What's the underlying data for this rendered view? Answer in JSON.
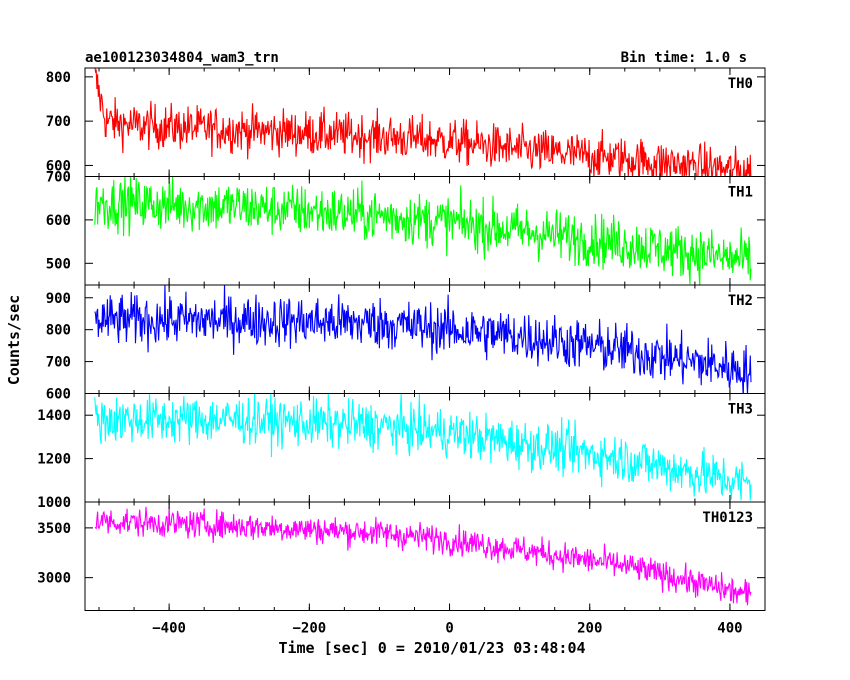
{
  "header": {
    "left": "ae100123034804_wam3_trn",
    "right": "Bin time: 1.0 s"
  },
  "chart_data": {
    "type": "line",
    "xlabel": "Time [sec] 0 = 2010/01/23 03:48:04",
    "ylabel": "Counts/sec",
    "xlim": [
      -520,
      450
    ],
    "x_ticks": [
      -400,
      -200,
      0,
      200,
      400
    ],
    "x_range_data": [
      -506,
      430
    ],
    "bin_seconds": 1.0,
    "panels": [
      {
        "name": "TH0",
        "color": "#ff0000",
        "ylim": [
          575,
          820
        ],
        "yticks": [
          600,
          700,
          800
        ],
        "ytick_labels": [
          "600",
          "700",
          "800"
        ],
        "trend": [
          [
            -506,
            800
          ],
          [
            -490,
            700
          ],
          [
            -450,
            690
          ],
          [
            -300,
            680
          ],
          [
            -100,
            665
          ],
          [
            0,
            655
          ],
          [
            100,
            635
          ],
          [
            250,
            615
          ],
          [
            430,
            585
          ]
        ],
        "noise": 25
      },
      {
        "name": "TH1",
        "color": "#00ff00",
        "ylim": [
          450,
          700
        ],
        "yticks": [
          500,
          600,
          700
        ],
        "ytick_labels": [
          "500",
          "600",
          "700"
        ],
        "trend": [
          [
            -506,
            640
          ],
          [
            -300,
            630
          ],
          [
            -100,
            610
          ],
          [
            0,
            595
          ],
          [
            100,
            575
          ],
          [
            250,
            545
          ],
          [
            430,
            505
          ]
        ],
        "noise": 30
      },
      {
        "name": "TH2",
        "color": "#0000ff",
        "ylim": [
          600,
          940
        ],
        "yticks": [
          600,
          700,
          800,
          900
        ],
        "ytick_labels": [
          "600",
          "700",
          "800",
          "900"
        ],
        "trend": [
          [
            -506,
            830
          ],
          [
            -300,
            830
          ],
          [
            -100,
            820
          ],
          [
            0,
            800
          ],
          [
            100,
            780
          ],
          [
            250,
            735
          ],
          [
            430,
            670
          ]
        ],
        "noise": 40
      },
      {
        "name": "TH3",
        "color": "#00ffff",
        "ylim": [
          1000,
          1500
        ],
        "yticks": [
          1000,
          1200,
          1400
        ],
        "ytick_labels": [
          "1000",
          "1200",
          "1400"
        ],
        "trend": [
          [
            -506,
            1380
          ],
          [
            -300,
            1380
          ],
          [
            -100,
            1350
          ],
          [
            0,
            1320
          ],
          [
            100,
            1270
          ],
          [
            250,
            1200
          ],
          [
            430,
            1080
          ]
        ],
        "noise": 55
      },
      {
        "name": "TH0123",
        "color": "#ff00ff",
        "ylim": [
          2670,
          3760
        ],
        "yticks": [
          3000,
          3500
        ],
        "ytick_labels": [
          "3000",
          "3500"
        ],
        "trend": [
          [
            -506,
            3570
          ],
          [
            -300,
            3520
          ],
          [
            -100,
            3450
          ],
          [
            0,
            3380
          ],
          [
            100,
            3280
          ],
          [
            250,
            3120
          ],
          [
            430,
            2820
          ]
        ],
        "noise": 70
      }
    ]
  }
}
